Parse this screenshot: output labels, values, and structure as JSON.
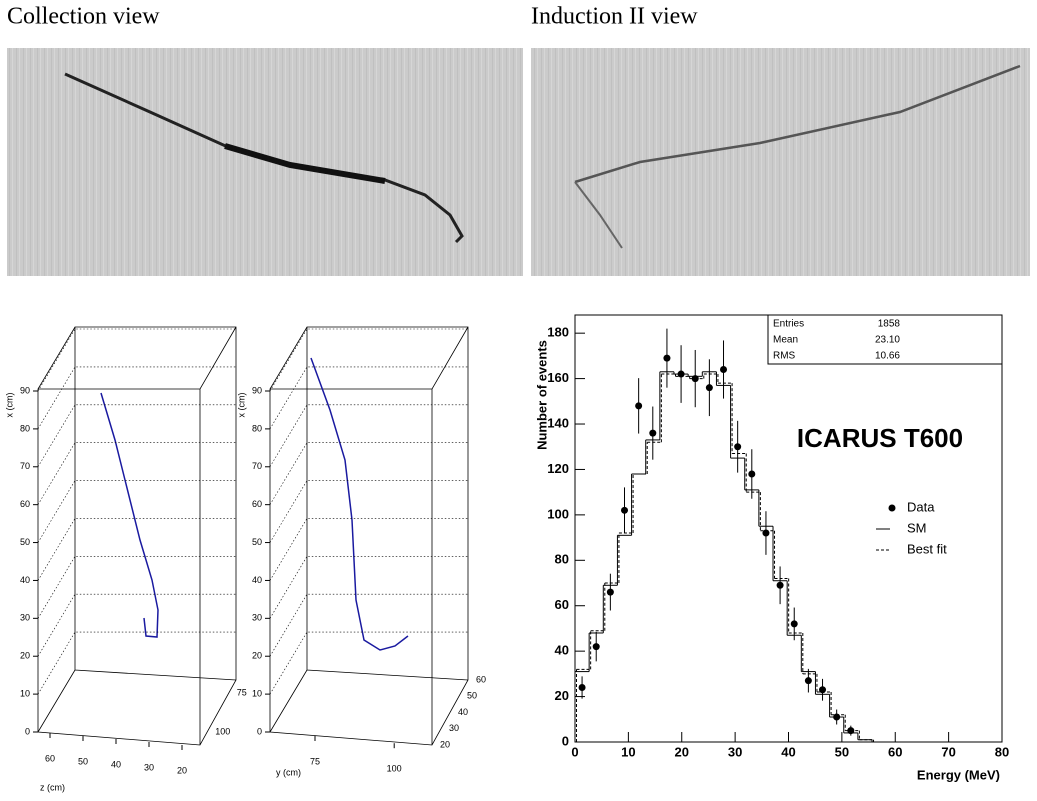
{
  "views": [
    {
      "title": "Collection view"
    },
    {
      "title": "Induction II view"
    }
  ],
  "plots3d": [
    {
      "x_label": "x (cm)",
      "x_ticks": [
        0,
        10,
        20,
        30,
        40,
        50,
        60,
        70,
        80,
        90
      ],
      "h_label": "z (cm)",
      "h_ticks": [
        60,
        50,
        40,
        30,
        20
      ],
      "d_ticks": [
        75,
        100
      ]
    },
    {
      "x_label": "x (cm)",
      "x_ticks": [
        0,
        10,
        20,
        30,
        40,
        50,
        60,
        70,
        80,
        90
      ],
      "h_label": "y (cm)",
      "h_ticks": [
        75,
        100
      ],
      "d_ticks": [
        20,
        30,
        40,
        50,
        60
      ]
    }
  ],
  "chart_data": {
    "type": "histogram",
    "title": "ICARUS T600",
    "x_label": "Energy (MeV)",
    "y_label": "Number of events",
    "bins": [
      0,
      2.65,
      5.3,
      7.95,
      10.6,
      13.25,
      15.9,
      18.55,
      21.2,
      23.85,
      26.5,
      29.15,
      31.8,
      34.45,
      37.1,
      39.75,
      42.4,
      45.05,
      47.7,
      50.35,
      53,
      55.65,
      58.3
    ],
    "series": [
      {
        "name": "Data",
        "color": "#000000",
        "style": "points",
        "values": [
          24,
          42,
          66,
          102,
          148,
          136,
          169,
          162,
          160,
          156,
          164,
          130,
          118,
          92,
          69,
          52,
          27,
          23,
          11,
          5,
          null,
          null
        ],
        "errors": [
          4.9,
          6.5,
          8.1,
          10.1,
          12.2,
          11.7,
          13,
          12.7,
          12.6,
          12.5,
          12.8,
          11.4,
          10.9,
          9.6,
          8.3,
          7.2,
          5.2,
          4.8,
          3.3,
          2.2,
          null,
          null
        ]
      },
      {
        "name": "SM",
        "color": "#000000",
        "style": "solid",
        "values": [
          31,
          48,
          69,
          91,
          118,
          133,
          163,
          162,
          161,
          163,
          157,
          125,
          111,
          95,
          71,
          47,
          31,
          21,
          11,
          4,
          1,
          0
        ]
      },
      {
        "name": "Best fit",
        "color": "#000000",
        "style": "dashed",
        "values": [
          32,
          49,
          70,
          92,
          118,
          132,
          162,
          161,
          160,
          162,
          158,
          127,
          110,
          93,
          72,
          48,
          30,
          22,
          12,
          5,
          1,
          0
        ]
      }
    ],
    "stats": [
      [
        "Entries",
        "1858"
      ],
      [
        "Mean",
        "23.10"
      ],
      [
        "RMS",
        "10.66"
      ]
    ],
    "xlim": [
      0,
      80
    ],
    "xticks": [
      0,
      10,
      20,
      30,
      40,
      50,
      60,
      70,
      80
    ],
    "ylim": [
      0,
      188
    ],
    "yticks": [
      0,
      20,
      40,
      60,
      80,
      100,
      120,
      140,
      160,
      180
    ]
  }
}
